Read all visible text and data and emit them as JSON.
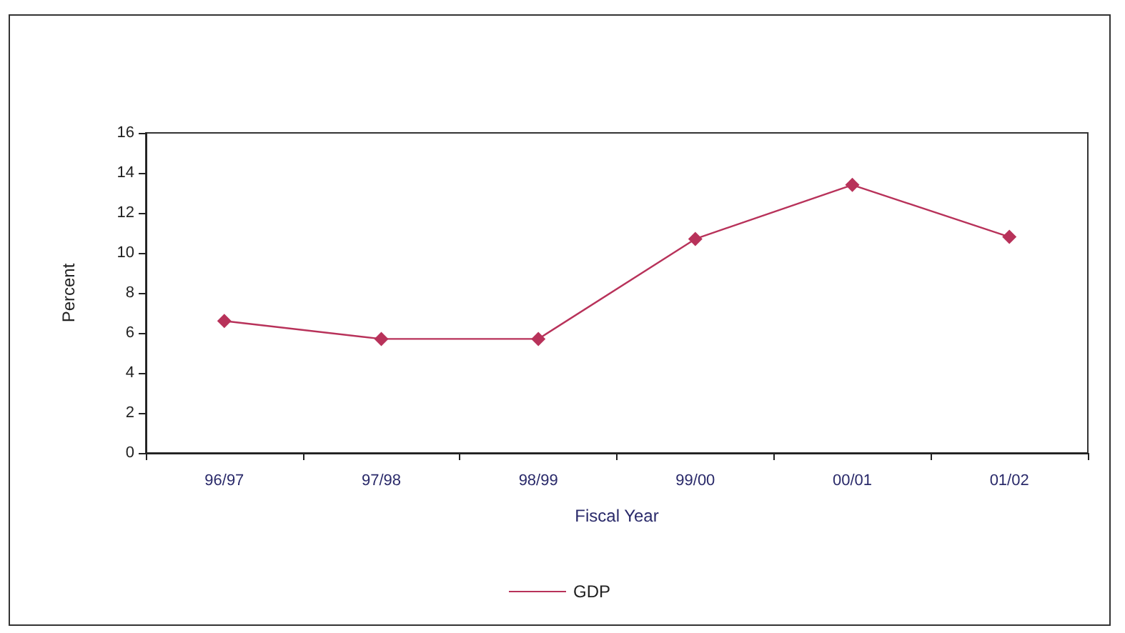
{
  "chart_data": {
    "type": "line",
    "xlabel": "Fiscal Year",
    "ylabel": "Percent",
    "categories": [
      "96/97",
      "97/98",
      "98/99",
      "99/00",
      "00/01",
      "01/02"
    ],
    "series": [
      {
        "name": "GDP",
        "color": "#b8325a",
        "values": [
          6.6,
          5.7,
          5.7,
          10.7,
          13.4,
          10.8
        ]
      }
    ],
    "ylim": [
      0,
      16
    ],
    "yticks": [
      0,
      2,
      4,
      6,
      8,
      10,
      12,
      14,
      16
    ],
    "grid": false,
    "legend": "bottom",
    "marker": "diamond",
    "line_style": "solid"
  }
}
